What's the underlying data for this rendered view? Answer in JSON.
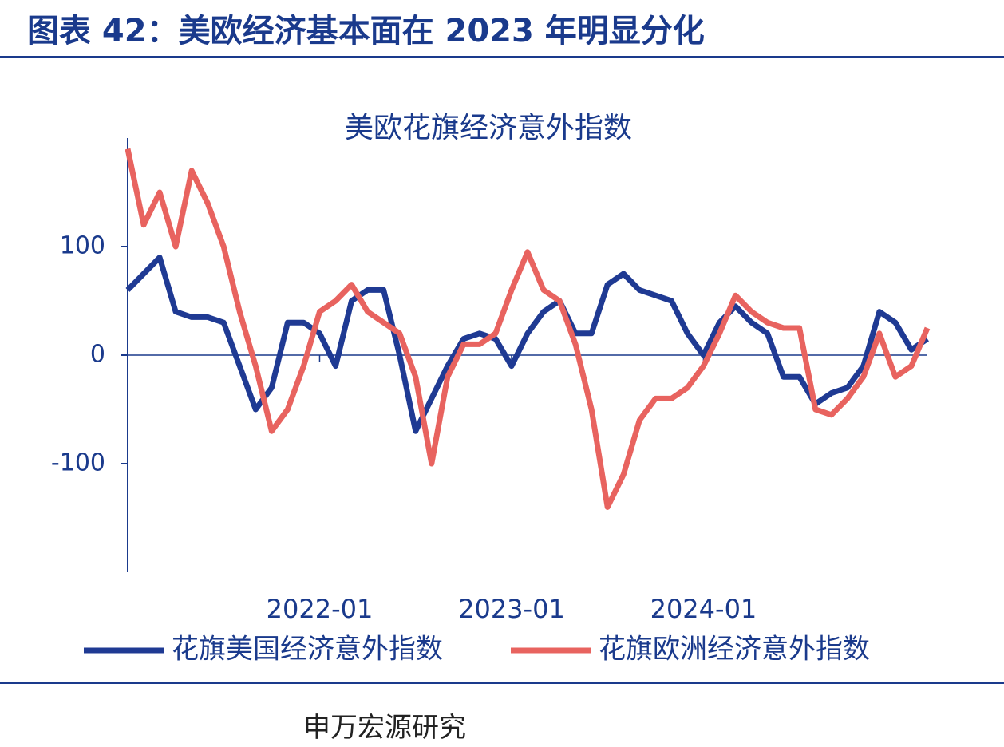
{
  "header": {
    "title": "图表 42：美欧经济基本面在 2023 年明显分化"
  },
  "chart_data": {
    "type": "line",
    "title": "美欧花旗经济意外指数",
    "x": [
      "2021-01",
      "2021-02",
      "2021-03",
      "2021-04",
      "2021-05",
      "2021-06",
      "2021-07",
      "2021-08",
      "2021-09",
      "2021-10",
      "2021-11",
      "2021-12",
      "2022-01",
      "2022-02",
      "2022-03",
      "2022-04",
      "2022-05",
      "2022-06",
      "2022-07",
      "2022-08",
      "2022-09",
      "2022-10",
      "2022-11",
      "2022-12",
      "2023-01",
      "2023-02",
      "2023-03",
      "2023-04",
      "2023-05",
      "2023-06",
      "2023-07",
      "2023-08",
      "2023-09",
      "2023-10",
      "2023-11",
      "2023-12",
      "2024-01",
      "2024-02",
      "2024-03",
      "2024-04",
      "2024-05",
      "2024-06",
      "2024-07",
      "2024-08",
      "2024-09",
      "2024-10",
      "2024-11",
      "2024-12",
      "2025-01",
      "2025-02",
      "2025-03"
    ],
    "series": [
      {
        "name": "花旗美国经济意外指数",
        "color": "#1f3a93",
        "values": [
          60,
          75,
          90,
          40,
          35,
          35,
          30,
          -10,
          -50,
          -30,
          30,
          30,
          20,
          -10,
          50,
          60,
          60,
          0,
          -70,
          -40,
          -10,
          15,
          20,
          15,
          -10,
          20,
          40,
          50,
          20,
          20,
          65,
          75,
          60,
          55,
          50,
          20,
          0,
          30,
          45,
          30,
          20,
          -20,
          -20,
          -45,
          -35,
          -30,
          -10,
          40,
          30,
          5,
          15
        ]
      },
      {
        "name": "花旗欧洲经济意外指数",
        "color": "#e8635f",
        "values": [
          190,
          120,
          150,
          100,
          170,
          140,
          100,
          40,
          -10,
          -70,
          -50,
          -10,
          40,
          50,
          65,
          40,
          30,
          20,
          -20,
          -100,
          -20,
          10,
          10,
          20,
          60,
          95,
          60,
          50,
          10,
          -50,
          -140,
          -110,
          -60,
          -40,
          -40,
          -30,
          -10,
          20,
          55,
          40,
          30,
          25,
          25,
          -50,
          -55,
          -40,
          -20,
          20,
          -20,
          -10,
          25
        ]
      }
    ],
    "xticks": [
      "2022-01",
      "2023-01",
      "2024-01"
    ],
    "ylim": [
      -200,
      200
    ],
    "yticks": [
      -100,
      0,
      100
    ]
  },
  "source": "申万宏源研究"
}
